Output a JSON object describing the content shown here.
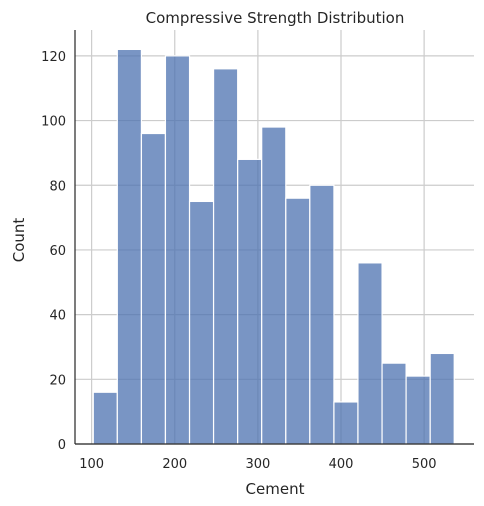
{
  "chart_data": {
    "type": "bar",
    "subtype": "histogram",
    "title": "Compressive Strength Distribution",
    "xlabel": "Cement",
    "ylabel": "Count",
    "xlim": [
      80,
      560
    ],
    "ylim": [
      0,
      128
    ],
    "x_ticks": [
      100,
      200,
      300,
      400,
      500
    ],
    "y_ticks": [
      0,
      20,
      40,
      60,
      80,
      100,
      120
    ],
    "grid": true,
    "bar_color": "#4c72b0",
    "bins": [
      {
        "start": 102.0,
        "end": 130.9,
        "count": 16
      },
      {
        "start": 130.9,
        "end": 159.9,
        "count": 122
      },
      {
        "start": 159.9,
        "end": 188.8,
        "count": 96
      },
      {
        "start": 188.8,
        "end": 217.8,
        "count": 120
      },
      {
        "start": 217.8,
        "end": 246.7,
        "count": 75
      },
      {
        "start": 246.7,
        "end": 275.7,
        "count": 116
      },
      {
        "start": 275.7,
        "end": 304.6,
        "count": 88
      },
      {
        "start": 304.6,
        "end": 333.6,
        "count": 98
      },
      {
        "start": 333.6,
        "end": 362.5,
        "count": 76
      },
      {
        "start": 362.5,
        "end": 391.5,
        "count": 80
      },
      {
        "start": 391.5,
        "end": 420.4,
        "count": 13
      },
      {
        "start": 420.4,
        "end": 449.4,
        "count": 56
      },
      {
        "start": 449.4,
        "end": 478.3,
        "count": 25
      },
      {
        "start": 478.3,
        "end": 507.3,
        "count": 21
      },
      {
        "start": 507.3,
        "end": 536.2,
        "count": 28
      }
    ]
  }
}
